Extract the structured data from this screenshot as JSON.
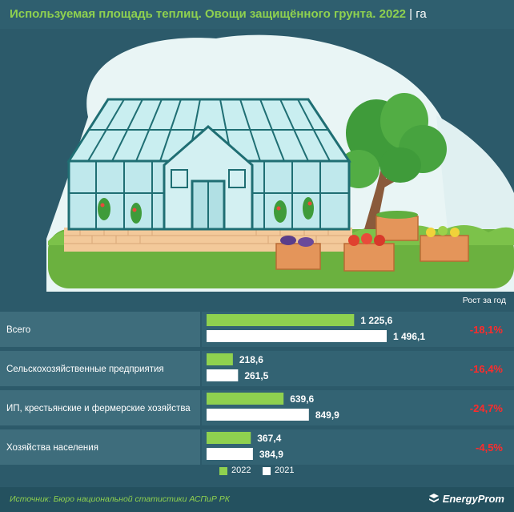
{
  "header": {
    "title": "Используемая площадь теплиц. Овощи защищённого грунта. 2022",
    "separator": "|",
    "unit": "га"
  },
  "chart_data": {
    "type": "bar",
    "orientation": "horizontal",
    "categories": [
      "Всего",
      "Сельскохозяйственные предприятия",
      "ИП, крестьянские и фермерские хозяйства",
      "Хозяйства населения"
    ],
    "series": [
      {
        "name": "2022",
        "color": "#8fd14f",
        "values": [
          1225.6,
          218.6,
          639.6,
          367.4
        ],
        "labels": [
          "1 225,6",
          "218,6",
          "639,6",
          "367,4"
        ]
      },
      {
        "name": "2021",
        "color": "#ffffff",
        "values": [
          1496.1,
          261.5,
          849.9,
          384.9
        ],
        "labels": [
          "1 496,1",
          "261,5",
          "849,9",
          "384,9"
        ]
      }
    ],
    "growth_header": "Рост за год",
    "growth": [
      "-18,1%",
      "-16,4%",
      "-24,7%",
      "-4,5%"
    ],
    "growth_color": "#ff2b2b",
    "legend_position": "bottom-center",
    "xlim": [
      0,
      1496.1
    ]
  },
  "footer": {
    "source": "Источник: Бюро национальной статистики АСПиР РК",
    "brand": "EnergyProm"
  }
}
